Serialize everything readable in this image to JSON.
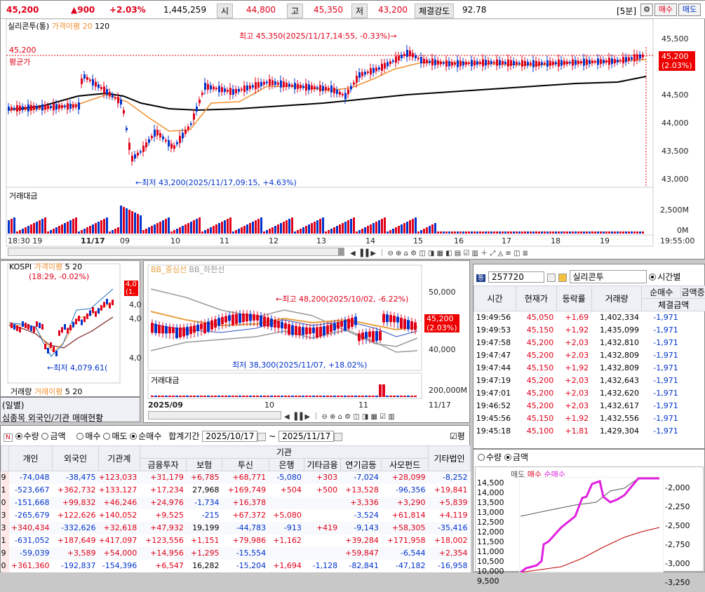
{
  "quote": {
    "price": "45,200",
    "change": "▲900",
    "pct": "+2.03%",
    "volume": "1,445,259",
    "open_label": "시",
    "open": "44,800",
    "high_label": "고",
    "high": "45,350",
    "low_label": "저",
    "low": "43,200",
    "strength_label": "체결강도",
    "strength": "92.78",
    "period": "[5분]",
    "buy": "매수",
    "sell": "매도"
  },
  "main_chart": {
    "title": "실리콘투(통)",
    "ma_label": "가격이평 20",
    "ma2": "120",
    "yticks": [
      "45,500",
      "45,000",
      "44,500",
      "44,000",
      "43,500",
      "43,000"
    ],
    "ylim": [
      42950,
      45650
    ],
    "max_annot": "최고 45,350(2025/11/17,14:55, -0.33%)→",
    "min_annot": "←최저 43,200(2025/11/17,09:15, +4.63%)",
    "avg_price": "45,200",
    "avg_label": "평균가",
    "cur_tag": "45,200",
    "cur_pct": "(2.03%)",
    "vol_label": "거래대금",
    "vol_ticks": [
      "2,500M",
      "0M"
    ],
    "xticks": [
      "18:30 19",
      "11/17",
      "09",
      "10",
      "11",
      "12",
      "13",
      "14",
      "15",
      "16",
      "17",
      "18",
      "19"
    ],
    "time_right": "19:55:00",
    "chart_data": {
      "type": "candlestick",
      "series": [
        {
          "name": "가격이평 20"
        },
        {
          "name": "120"
        }
      ],
      "low": 43200,
      "high": 45350,
      "close": 45200
    }
  },
  "left_mini": {
    "title": "KOSPI",
    "ma": "가격이평",
    "ma_n": "5",
    "ma2": "20",
    "mid_text": "(18:29, -0.02%)",
    "y1": "4,0",
    "y2": "4,0",
    "y3": "4,0",
    "min_annot": "←최저 4,079.61(",
    "tag1": "4,0",
    "tag2": "(1.",
    "vol": "거래량",
    "vol_ma": "거래이평",
    "vol_n": "5",
    "vol_n2": "20"
  },
  "mid_chart": {
    "legend1": "BB_중심선",
    "legend2": "BB_하한선",
    "max_annot": "←최고 48,200(2025/10/02, -6.22%)",
    "min_annot": "최저 38,300(2025/11/07, +18.02%)",
    "yticks": [
      "50,000",
      "45,000",
      "40,000"
    ],
    "tag": "45,200",
    "tag_pct": "(2.03%)",
    "vol_label": "거래대금",
    "vol_tick": "200,000M",
    "x_left": "2025/09",
    "x_mid1": "10",
    "x_mid2": "11",
    "x_right": "11/17"
  },
  "bottom_left": {
    "tab1": "(일별)",
    "tab2": "심종목 외국인/기관 매매현황",
    "radio": {
      "qty": "수량",
      "amt": "금액",
      "buy": "매수",
      "sell": "매도",
      "net": "순매수"
    },
    "period_label": "합계기간",
    "from": "2025/10/17",
    "to": "2025/11/17",
    "pyeong": "평",
    "headers": [
      "개인",
      "외국인",
      "기관계"
    ],
    "inst_header": "기관",
    "inst_sub": [
      "금융투자",
      "보험",
      "투신",
      "은행",
      "기타금융",
      "연기금등",
      "사모펀드",
      "기타법인"
    ],
    "rows": [
      [
        "9",
        "-74,048",
        "-38,475",
        "+123,033",
        "+31,179",
        "+6,785",
        "+68,771",
        "-5,080",
        "+303",
        "-7,024",
        "+28,099",
        "-8,252"
      ],
      [
        "1",
        "-523,667",
        "+362,732",
        "+133,127",
        "+17,234",
        "27,968",
        "+169,749",
        "+504",
        "+500",
        "+13,528",
        "-96,356",
        "+19,841"
      ],
      [
        "0",
        "-151,668",
        "+99,832",
        "+46,246",
        "+24,976",
        "-1,734",
        "+16,378",
        "",
        "",
        "+3,336",
        "+3,290",
        "+5,839"
      ],
      [
        "3",
        "-265,679",
        "+122,626",
        "+140,052",
        "+9,525",
        "-215",
        "+67,372",
        "+5,080",
        "",
        "-3,524",
        "+61,814",
        "+4,119"
      ],
      [
        "3",
        "+340,434",
        "-332,626",
        "+32,618",
        "+47,932",
        "19,199",
        "-44,783",
        "-913",
        "+419",
        "-9,143",
        "+58,305",
        "-35,416"
      ],
      [
        "1",
        "-631,052",
        "+187,649",
        "+417,097",
        "+123,556",
        "+1,151",
        "+79,986",
        "+1,162",
        "",
        "+39,284",
        "+171,958",
        "+18,002"
      ],
      [
        "9",
        "-59,039",
        "+3,589",
        "+54,000",
        "+14,956",
        "+1,295",
        "-15,554",
        "",
        "",
        "+59,847",
        "-6,544",
        "+2,354"
      ],
      [
        "0",
        "+361,360",
        "-192,837",
        "-154,396",
        "+6,547",
        "16,282",
        "-15,204",
        "+1,694",
        "-1,128",
        "-82,841",
        "-47,182",
        "-16,958"
      ]
    ]
  },
  "right_panel": {
    "code": "257720",
    "name": "실리콘투",
    "radio": "시간별",
    "cols": [
      "시간",
      "현재가",
      "등락률",
      "거래량",
      "순매수",
      "금액증"
    ],
    "sub_col": "체결금액",
    "rows": [
      [
        "19:49:56",
        "45,050",
        "+1,69",
        "1,402,334",
        "-1,971"
      ],
      [
        "19:49:53",
        "45,150",
        "+1,92",
        "1,435,099",
        "-1,971"
      ],
      [
        "19:47:58",
        "45,200",
        "+2,03",
        "1,432,810",
        "-1,971"
      ],
      [
        "19:47:47",
        "45,200",
        "+2,03",
        "1,432,809",
        "-1,971"
      ],
      [
        "19:47:44",
        "45,150",
        "+1,92",
        "1,432,809",
        "-1,971"
      ],
      [
        "19:47:19",
        "45,200",
        "+2,03",
        "1,432,643",
        "-1,971"
      ],
      [
        "19:47:01",
        "45,200",
        "+2,03",
        "1,432,620",
        "-1,971"
      ],
      [
        "19:46:52",
        "45,200",
        "+2,03",
        "1,432,617",
        "-1,971"
      ],
      [
        "19:45:56",
        "45,150",
        "+1,92",
        "1,432,556",
        "-1,971"
      ],
      [
        "19:45:18",
        "45,100",
        "+1,81",
        "1,429,304",
        "-1,971"
      ]
    ],
    "radio2": {
      "qty": "수량",
      "amt": "금액"
    },
    "legend": [
      "매도",
      "매수",
      "순매수"
    ],
    "ylabels": [
      "14,500",
      "14,000",
      "13,500",
      "13,000",
      "12,500",
      "12,000",
      "11,500",
      "11,000",
      "10,500",
      "10,000",
      "9,500"
    ],
    "ylabels_r": [
      "-2,000",
      "-2,250",
      "-2,500",
      "-2,750",
      "-3,000",
      "-3,250"
    ]
  }
}
